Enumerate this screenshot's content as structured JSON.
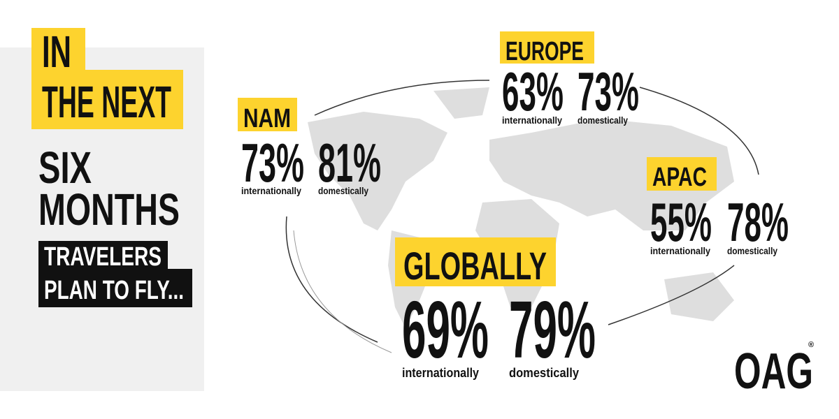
{
  "headline": {
    "lines": [
      "IN",
      "THE NEXT",
      "SIX",
      "MONTHS"
    ],
    "sub": [
      "TRAVELERS",
      "PLAN TO FLY..."
    ]
  },
  "regions": [
    {
      "name": "NAM",
      "international": "73%",
      "international_label": "internationally",
      "domestic": "81%",
      "domestic_label": "domestically"
    },
    {
      "name": "EUROPE",
      "international": "63%",
      "international_label": "internationally",
      "domestic": "73%",
      "domestic_label": "domestically"
    },
    {
      "name": "APAC",
      "international": "55%",
      "international_label": "internationally",
      "domestic": "78%",
      "domestic_label": "domestically"
    },
    {
      "name": "GLOBALLY",
      "international": "69%",
      "international_label": "internationally",
      "domestic": "79%",
      "domestic_label": "domestically"
    }
  ],
  "logo": {
    "text": "OAG",
    "mark": "®"
  }
}
